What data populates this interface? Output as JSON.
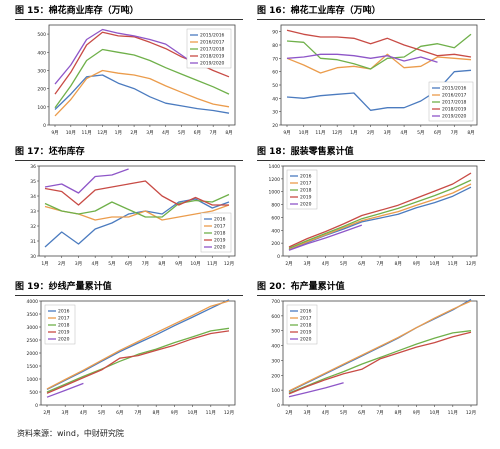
{
  "source_note": "资料来源：wind，中财研究院",
  "palette": {
    "blue": "#4b7bbf",
    "orange": "#eb9c4c",
    "green": "#6fb04a",
    "red": "#c84b45",
    "purple": "#8e56c8"
  },
  "chart_data": [
    {
      "id": "c15",
      "type": "line",
      "title": "图 15：棉花商业库存（万吨）",
      "categories": [
        "9月",
        "10月",
        "11月",
        "12月",
        "1月",
        "2月",
        "3月",
        "4月",
        "5月",
        "6月",
        "7月",
        "8月"
      ],
      "ylim": [
        0,
        550
      ],
      "yticks": [
        0,
        100,
        200,
        300,
        400,
        500
      ],
      "legend_position": "top-right",
      "series": [
        {
          "name": "2015/2016",
          "color": "blue",
          "values": [
            85,
            170,
            265,
            275,
            230,
            200,
            155,
            120,
            105,
            90,
            80,
            65
          ]
        },
        {
          "name": "2016/2017",
          "color": "orange",
          "values": [
            50,
            140,
            255,
            300,
            285,
            275,
            255,
            215,
            180,
            145,
            115,
            100
          ]
        },
        {
          "name": "2017/2018",
          "color": "green",
          "values": [
            95,
            215,
            355,
            415,
            400,
            385,
            355,
            315,
            280,
            245,
            210,
            170
          ]
        },
        {
          "name": "2018/2019",
          "color": "red",
          "values": [
            170,
            290,
            440,
            510,
            490,
            485,
            455,
            420,
            375,
            340,
            300,
            265
          ]
        },
        {
          "name": "2019/2020",
          "color": "purple",
          "values": [
            225,
            330,
            470,
            525,
            505,
            490,
            470,
            445,
            385,
            325,
            null,
            null
          ]
        }
      ]
    },
    {
      "id": "c16",
      "type": "line",
      "title": "图 16：棉花工业库存（万吨）",
      "categories": [
        "9月",
        "10月",
        "11月",
        "12月",
        "1月",
        "2月",
        "3月",
        "4月",
        "5月",
        "6月",
        "7月",
        "8月"
      ],
      "ylim": [
        20,
        95
      ],
      "yticks": [
        20,
        30,
        40,
        50,
        60,
        70,
        80,
        90
      ],
      "legend_position": "bottom-right",
      "series": [
        {
          "name": "2015/2016",
          "color": "blue",
          "values": [
            41,
            40,
            42,
            43,
            44,
            31,
            33,
            33,
            38,
            46,
            60,
            61
          ]
        },
        {
          "name": "2016/2017",
          "color": "orange",
          "values": [
            70,
            65,
            59,
            63,
            64,
            62,
            73,
            63,
            64,
            71,
            70,
            69
          ]
        },
        {
          "name": "2017/2018",
          "color": "green",
          "values": [
            83,
            82,
            70,
            69,
            66,
            62,
            70,
            71,
            79,
            81,
            78,
            88
          ]
        },
        {
          "name": "2018/2019",
          "color": "red",
          "values": [
            91,
            88,
            86,
            86,
            85,
            81,
            85,
            80,
            76,
            72,
            73,
            71
          ]
        },
        {
          "name": "2019/2020",
          "color": "purple",
          "values": [
            70,
            71,
            73,
            73,
            72,
            70,
            72,
            68,
            71,
            67,
            null,
            null
          ]
        }
      ]
    },
    {
      "id": "c17",
      "type": "line",
      "title": "图 17：坯布库存",
      "categories": [
        "1月",
        "2月",
        "3月",
        "4月",
        "5月",
        "6月",
        "7月",
        "8月",
        "9月",
        "10月",
        "11月",
        "12月"
      ],
      "ylim": [
        30,
        36
      ],
      "yticks": [
        30,
        31,
        32,
        33,
        34,
        35,
        36
      ],
      "legend_position": "bottom-right",
      "series": [
        {
          "name": "2016",
          "color": "blue",
          "values": [
            30.6,
            31.6,
            30.8,
            31.8,
            32.2,
            32.8,
            33.0,
            32.8,
            33.6,
            33.8,
            33.2,
            33.6
          ]
        },
        {
          "name": "2017",
          "color": "orange",
          "values": [
            33.3,
            33.0,
            32.8,
            32.4,
            32.6,
            32.6,
            33.0,
            32.4,
            32.6,
            32.8,
            33.0,
            33.4
          ]
        },
        {
          "name": "2018",
          "color": "green",
          "values": [
            33.5,
            33.0,
            32.8,
            33.0,
            33.6,
            33.1,
            32.6,
            32.6,
            33.5,
            33.7,
            33.6,
            34.1
          ]
        },
        {
          "name": "2019",
          "color": "red",
          "values": [
            34.5,
            34.3,
            33.4,
            34.4,
            34.6,
            34.8,
            35.0,
            34.0,
            33.4,
            33.9,
            33.4,
            33.4
          ]
        },
        {
          "name": "2020",
          "color": "purple",
          "values": [
            34.6,
            34.8,
            34.2,
            35.3,
            35.4,
            35.8,
            null,
            null,
            null,
            null,
            null,
            null
          ]
        }
      ]
    },
    {
      "id": "c18",
      "type": "line",
      "title": "图 18：服装零售累计值",
      "categories": [
        "2月",
        "3月",
        "4月",
        "5月",
        "6月",
        "7月",
        "8月",
        "9月",
        "10月",
        "11月",
        "12月"
      ],
      "ylim": [
        0,
        1400
      ],
      "yticks": [
        0,
        200,
        400,
        600,
        800,
        1000,
        1200,
        1400
      ],
      "legend_position": "top-left",
      "series": [
        {
          "name": "2016",
          "color": "blue",
          "values": [
            100,
            210,
            320,
            420,
            530,
            590,
            650,
            750,
            830,
            930,
            1070
          ]
        },
        {
          "name": "2017",
          "color": "orange",
          "values": [
            110,
            220,
            330,
            440,
            550,
            620,
            690,
            790,
            880,
            980,
            1120
          ]
        },
        {
          "name": "2018",
          "color": "green",
          "values": [
            120,
            240,
            350,
            460,
            580,
            660,
            740,
            840,
            940,
            1050,
            1180
          ]
        },
        {
          "name": "2019",
          "color": "red",
          "values": [
            140,
            270,
            380,
            500,
            630,
            710,
            790,
            900,
            1010,
            1120,
            1290
          ]
        },
        {
          "name": "2020",
          "color": "purple",
          "values": [
            90,
            190,
            280,
            380,
            480,
            null,
            null,
            null,
            null,
            null,
            null
          ]
        }
      ]
    },
    {
      "id": "c19",
      "type": "line",
      "title": "图 19：纱线产量累计值",
      "categories": [
        "2月",
        "3月",
        "4月",
        "5月",
        "6月",
        "7月",
        "8月",
        "9月",
        "10月",
        "11月",
        "12月"
      ],
      "ylim": [
        0,
        4000
      ],
      "yticks": [
        0,
        500,
        1000,
        1500,
        2000,
        2500,
        3000,
        3500,
        4000
      ],
      "legend_position": "top-left",
      "series": [
        {
          "name": "2016",
          "color": "blue",
          "values": [
            600,
            950,
            1300,
            1680,
            2050,
            2380,
            2700,
            3050,
            3380,
            3720,
            4050
          ]
        },
        {
          "name": "2017",
          "color": "orange",
          "values": [
            620,
            980,
            1340,
            1720,
            2100,
            2440,
            2780,
            3120,
            3450,
            3800,
            4000
          ]
        },
        {
          "name": "2018",
          "color": "green",
          "values": [
            500,
            800,
            1100,
            1380,
            1680,
            1950,
            2150,
            2400,
            2620,
            2850,
            2950
          ]
        },
        {
          "name": "2019",
          "color": "red",
          "values": [
            450,
            750,
            1050,
            1350,
            1800,
            1900,
            2100,
            2300,
            2550,
            2750,
            2850
          ]
        },
        {
          "name": "2020",
          "color": "purple",
          "values": [
            300,
            560,
            830,
            null,
            null,
            null,
            null,
            null,
            null,
            null,
            null
          ]
        }
      ]
    },
    {
      "id": "c20",
      "type": "line",
      "title": "图 20：布产量累计值",
      "categories": [
        "2月",
        "3月",
        "4月",
        "5月",
        "6月",
        "7月",
        "8月",
        "9月",
        "10月",
        "11月",
        "12月"
      ],
      "ylim": [
        0,
        700
      ],
      "yticks": [
        0,
        100,
        200,
        300,
        400,
        500,
        600,
        700
      ],
      "legend_position": "top-left",
      "series": [
        {
          "name": "2016",
          "color": "blue",
          "values": [
            90,
            150,
            210,
            270,
            330,
            390,
            450,
            520,
            580,
            640,
            710
          ]
        },
        {
          "name": "2017",
          "color": "orange",
          "values": [
            95,
            155,
            215,
            275,
            335,
            395,
            455,
            520,
            585,
            645,
            700
          ]
        },
        {
          "name": "2018",
          "color": "green",
          "values": [
            80,
            130,
            180,
            225,
            275,
            320,
            365,
            410,
            450,
            485,
            500
          ]
        },
        {
          "name": "2019",
          "color": "red",
          "values": [
            75,
            125,
            170,
            210,
            240,
            310,
            350,
            390,
            420,
            460,
            490
          ]
        },
        {
          "name": "2020",
          "color": "purple",
          "values": [
            55,
            85,
            115,
            150,
            null,
            null,
            null,
            null,
            null,
            null,
            null
          ]
        }
      ]
    }
  ]
}
